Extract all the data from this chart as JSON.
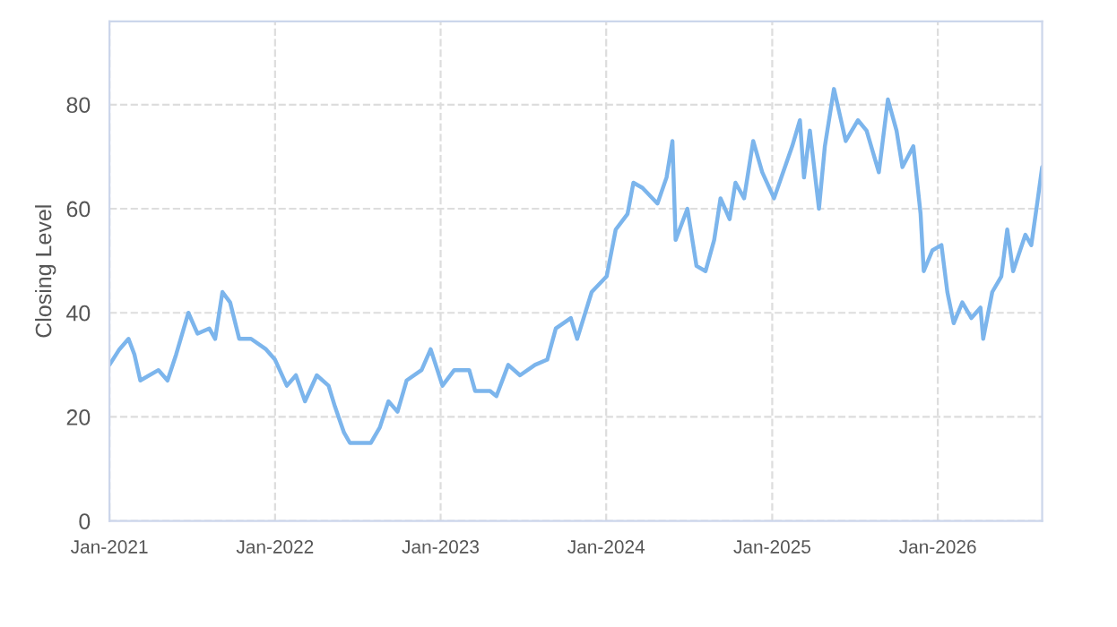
{
  "chart_data": {
    "type": "line",
    "ylabel": "Closing Level",
    "x": [
      "2021-01-01",
      "2021-01-23",
      "2021-02-12",
      "2021-02-25",
      "2021-03-10",
      "2021-04-19",
      "2021-05-09",
      "2021-05-28",
      "2021-06-24",
      "2021-07-14",
      "2021-08-09",
      "2021-08-22",
      "2021-09-07",
      "2021-09-24",
      "2021-10-14",
      "2021-11-09",
      "2021-12-12",
      "2022-01-01",
      "2022-01-27",
      "2022-02-16",
      "2022-03-08",
      "2022-04-03",
      "2022-04-29",
      "2022-05-13",
      "2022-06-02",
      "2022-06-15",
      "2022-07-11",
      "2022-07-31",
      "2022-08-20",
      "2022-09-08",
      "2022-09-28",
      "2022-10-18",
      "2022-11-20",
      "2022-12-10",
      "2023-01-05",
      "2023-01-31",
      "2023-03-05",
      "2023-03-18",
      "2023-04-20",
      "2023-05-04",
      "2023-05-30",
      "2023-06-25",
      "2023-07-28",
      "2023-08-24",
      "2023-09-12",
      "2023-10-15",
      "2023-10-29",
      "2023-11-30",
      "2024-01-02",
      "2024-01-22",
      "2024-02-17",
      "2024-03-01",
      "2024-03-21",
      "2024-04-23",
      "2024-05-13",
      "2024-05-26",
      "2024-06-02",
      "2024-06-28",
      "2024-07-18",
      "2024-08-07",
      "2024-08-26",
      "2024-09-09",
      "2024-09-29",
      "2024-10-12",
      "2024-10-31",
      "2024-11-20",
      "2024-12-10",
      "2025-01-05",
      "2025-01-25",
      "2025-02-14",
      "2025-03-03",
      "2025-03-12",
      "2025-03-25",
      "2025-04-14",
      "2025-04-27",
      "2025-05-17",
      "2025-06-12",
      "2025-07-09",
      "2025-07-28",
      "2025-08-24",
      "2025-09-13",
      "2025-10-02",
      "2025-10-15",
      "2025-11-08",
      "2025-11-24",
      "2025-12-01",
      "2025-12-20",
      "2026-01-09",
      "2026-01-22",
      "2026-02-05",
      "2026-02-24",
      "2026-03-16",
      "2026-04-05",
      "2026-04-11",
      "2026-05-01",
      "2026-05-21",
      "2026-06-03",
      "2026-06-16",
      "2026-07-13",
      "2026-07-26",
      "2026-08-08",
      "2026-08-19"
    ],
    "series": [
      {
        "color": "#7cb5ec",
        "values": [
          30,
          33,
          35,
          32,
          27,
          29,
          27,
          32,
          40,
          36,
          37,
          35,
          44,
          42,
          35,
          35,
          33,
          31,
          26,
          28,
          23,
          28,
          26,
          22,
          17,
          15,
          15,
          15,
          18,
          23,
          21,
          27,
          29,
          33,
          26,
          29,
          29,
          25,
          25,
          24,
          30,
          28,
          30,
          31,
          37,
          39,
          35,
          44,
          47,
          56,
          59,
          65,
          64,
          61,
          66,
          73,
          54,
          60,
          49,
          48,
          54,
          62,
          58,
          65,
          62,
          73,
          67,
          62,
          67,
          72,
          77,
          66,
          75,
          60,
          72,
          83,
          73,
          77,
          75,
          67,
          81,
          75,
          68,
          72,
          59,
          48,
          52,
          53,
          44,
          38,
          42,
          39,
          41,
          35,
          44,
          47,
          56,
          48,
          55,
          53,
          61,
          68
        ]
      }
    ],
    "xlim": [
      "2021-01-01",
      "2026-08-19"
    ],
    "xticks": [
      {
        "value": "2021-01-01",
        "label": "Jan-2021"
      },
      {
        "value": "2022-01-01",
        "label": "Jan-2022"
      },
      {
        "value": "2023-01-01",
        "label": "Jan-2023"
      },
      {
        "value": "2024-01-01",
        "label": "Jan-2024"
      },
      {
        "value": "2025-01-01",
        "label": "Jan-2025"
      },
      {
        "value": "2026-01-01",
        "label": "Jan-2026"
      }
    ],
    "ylim": [
      0,
      96
    ],
    "yticks": [
      0,
      20,
      40,
      60,
      80
    ],
    "grid": true,
    "marker": "none",
    "line_style": "solid"
  }
}
